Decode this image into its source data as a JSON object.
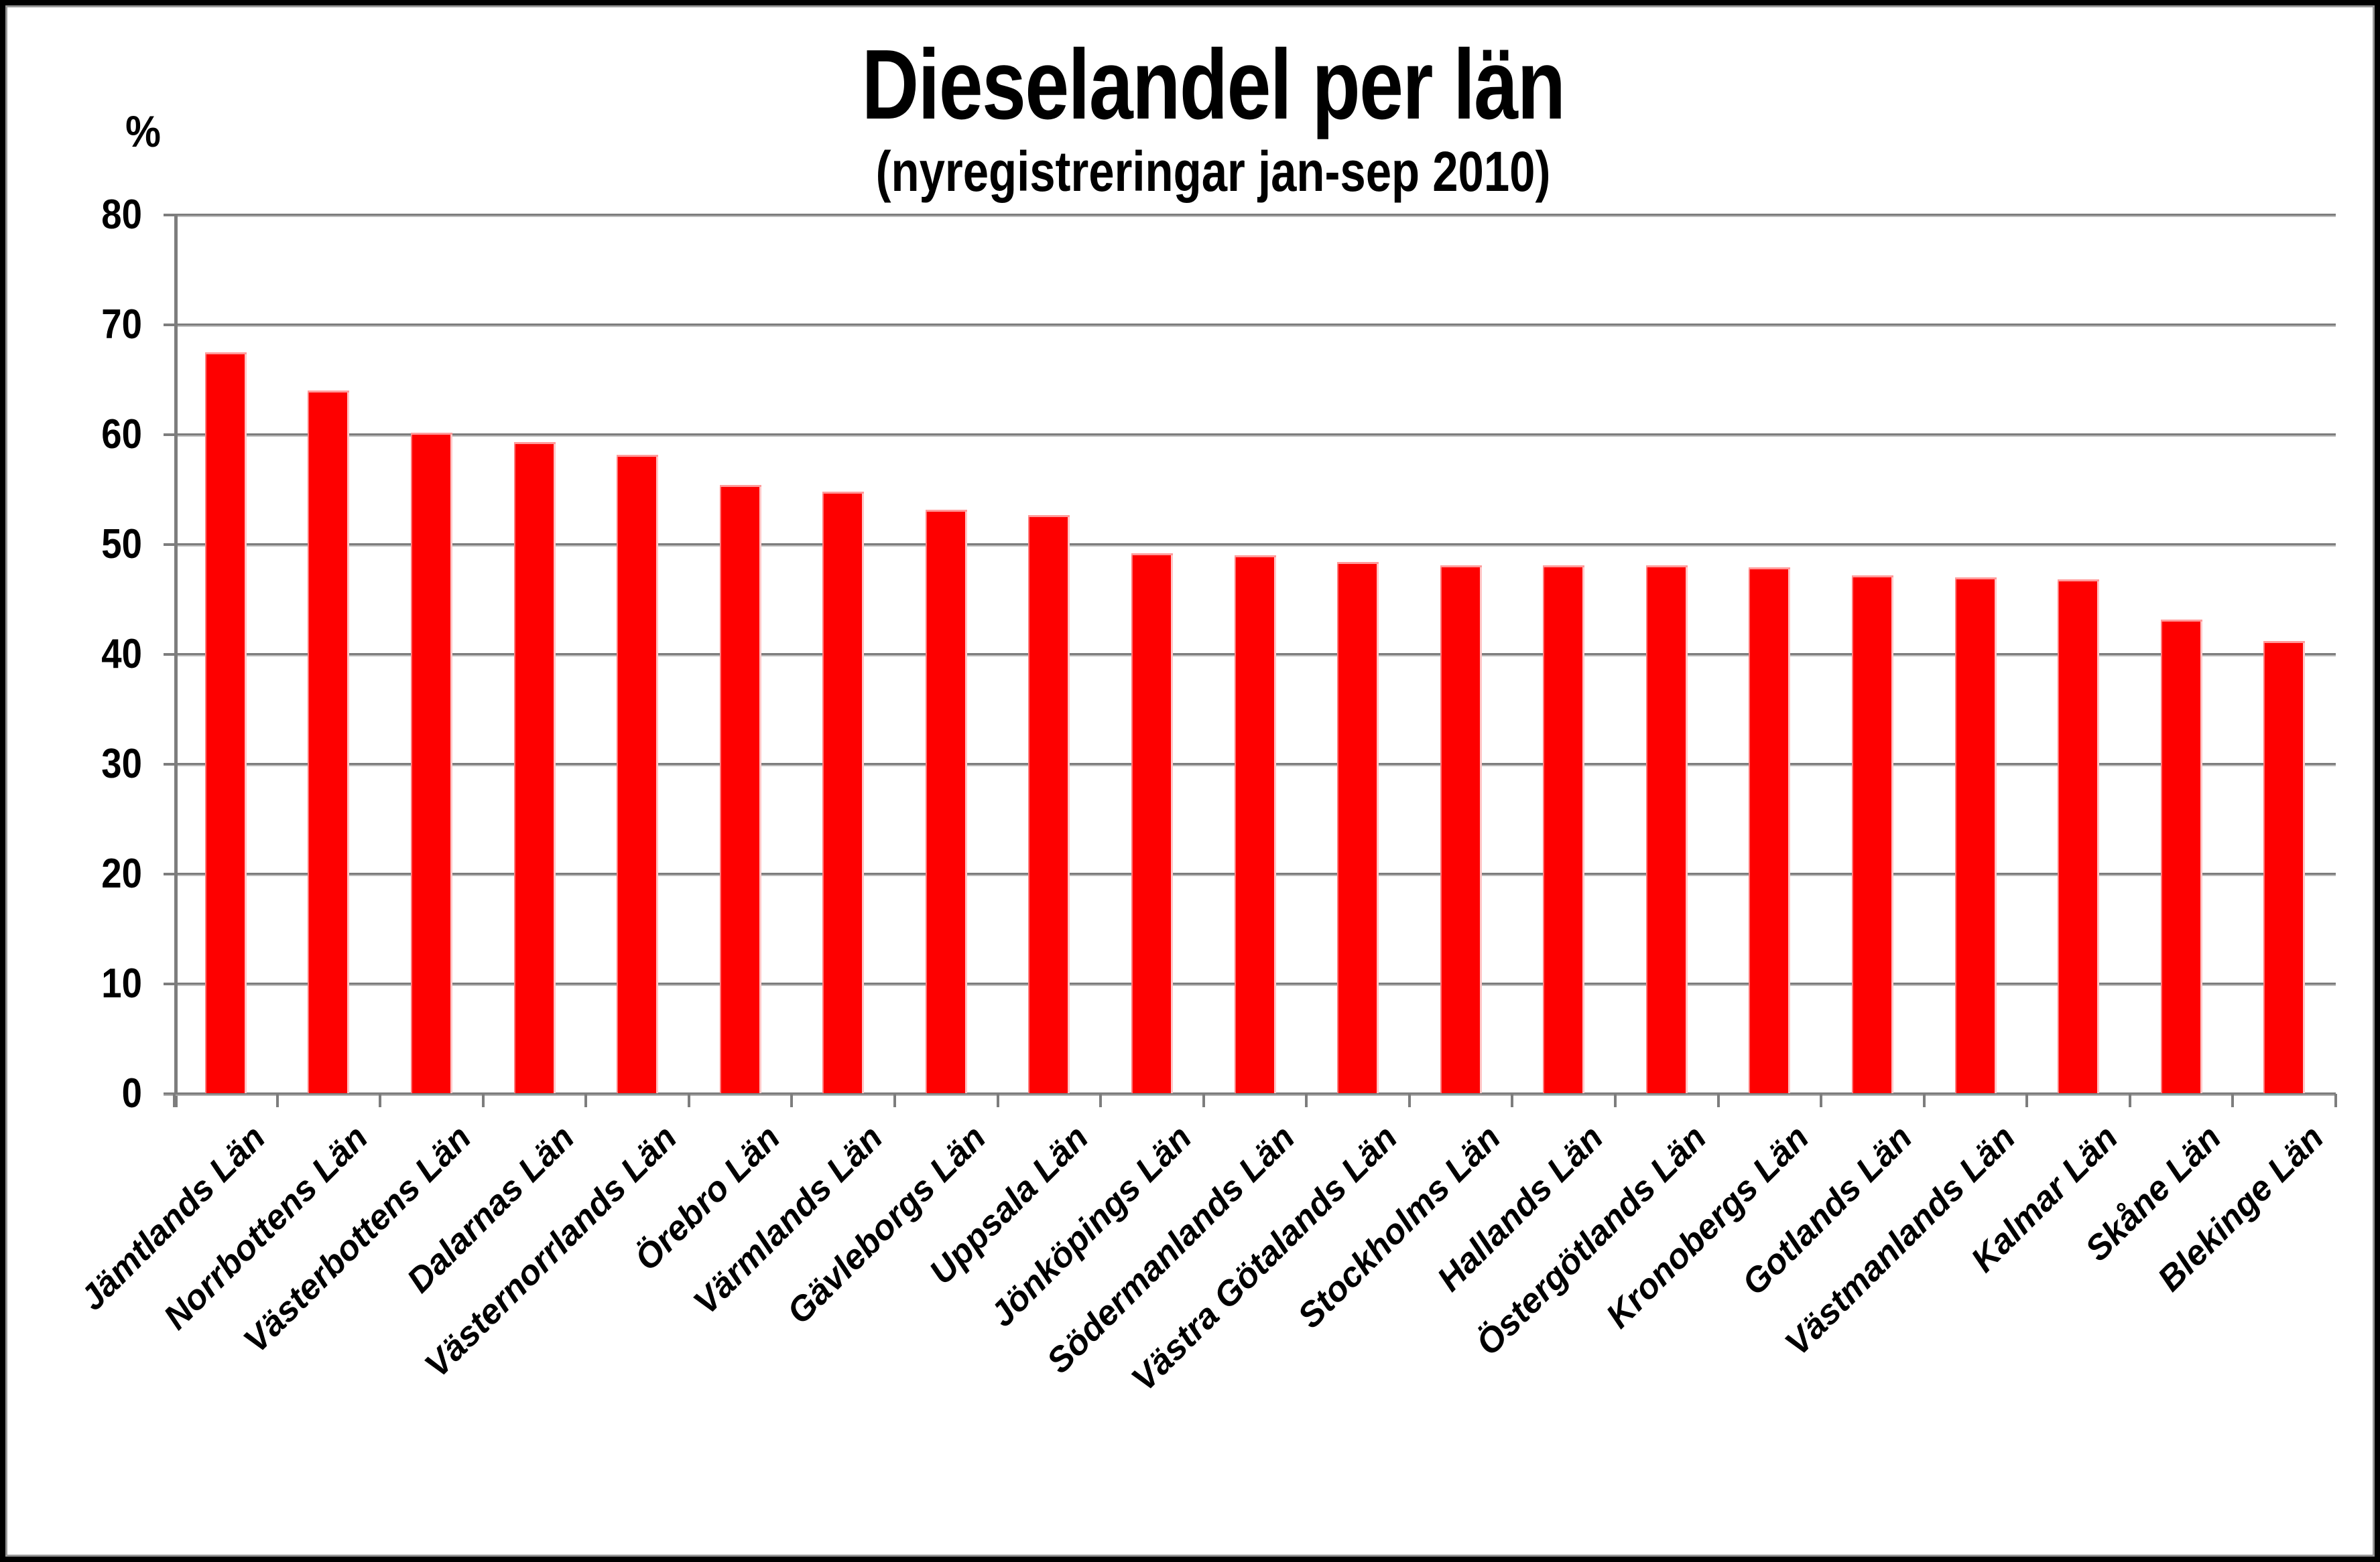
{
  "chart": {
    "title": "Dieselandel per län",
    "subtitle": "(nyregistreringar jan-sep 2010)",
    "y_axis_unit_label": "%"
  },
  "chart_data": {
    "type": "bar",
    "title": "Dieselandel per län",
    "subtitle": "(nyregistreringar jan-sep 2010)",
    "ylabel": "%",
    "xlabel": "",
    "ylim": [
      0,
      80
    ],
    "yticks": [
      0,
      10,
      20,
      30,
      40,
      50,
      60,
      70,
      80
    ],
    "grid": true,
    "legend": false,
    "bar_color": "#fe0000",
    "gridline_color": "#7d7d7d",
    "categories": [
      "Jämtlands Län",
      "Norrbottens Län",
      "Västerbottens Län",
      "Dalarnas Län",
      "Västernorrlands Län",
      "Örebro Län",
      "Värmlands Län",
      "Gävleborgs Län",
      "Uppsala Län",
      "Jönköpings Län",
      "Södermanlands Län",
      "Västra Götalands Län",
      "Stockholms Län",
      "Hallands Län",
      "Östergötlands Län",
      "Kronobergs Län",
      "Gotlands Län",
      "Västmanlands Län",
      "Kalmar Län",
      "Skåne Län",
      "Blekinge Län"
    ],
    "values": [
      67.5,
      64.0,
      60.2,
      59.3,
      58.2,
      55.4,
      54.8,
      53.2,
      52.7,
      49.2,
      49.0,
      48.4,
      48.1,
      48.1,
      48.1,
      47.9,
      47.2,
      47.0,
      46.8,
      43.2,
      41.2
    ]
  }
}
